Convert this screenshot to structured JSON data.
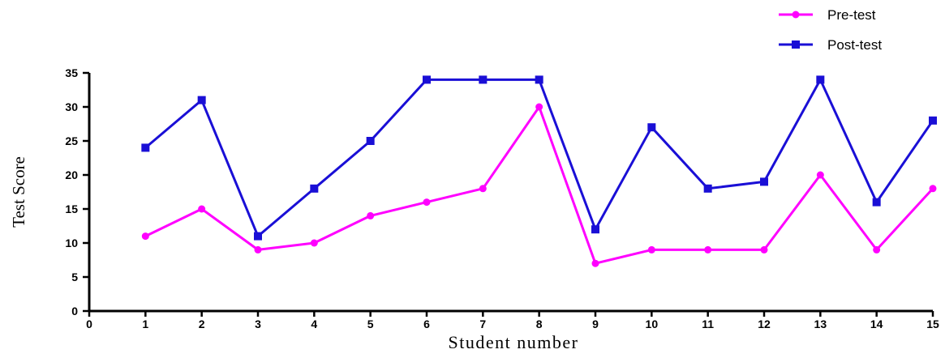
{
  "chart_data": {
    "type": "line",
    "xlabel": "Student number",
    "ylabel": "Test Score",
    "xlim": [
      0,
      15
    ],
    "ylim": [
      0,
      35
    ],
    "x_ticks": [
      0,
      1,
      2,
      3,
      4,
      5,
      6,
      7,
      8,
      9,
      10,
      11,
      12,
      13,
      14,
      15
    ],
    "y_ticks": [
      0,
      5,
      10,
      15,
      20,
      25,
      30,
      35
    ],
    "x": [
      1,
      2,
      3,
      4,
      5,
      6,
      7,
      8,
      9,
      10,
      11,
      12,
      13,
      14,
      15
    ],
    "grid": false,
    "legend_position": "top-right",
    "series": [
      {
        "name": "Pre-test",
        "color": "#ff00ff",
        "marker": "circle",
        "values": [
          11,
          15,
          9,
          10,
          14,
          16,
          18,
          30,
          7,
          9,
          9,
          9,
          20,
          9,
          18
        ]
      },
      {
        "name": "Post-test",
        "color": "#1a0fd6",
        "marker": "square",
        "values": [
          24,
          31,
          11,
          18,
          25,
          34,
          34,
          34,
          12,
          27,
          18,
          19,
          34,
          16,
          28
        ]
      }
    ]
  }
}
